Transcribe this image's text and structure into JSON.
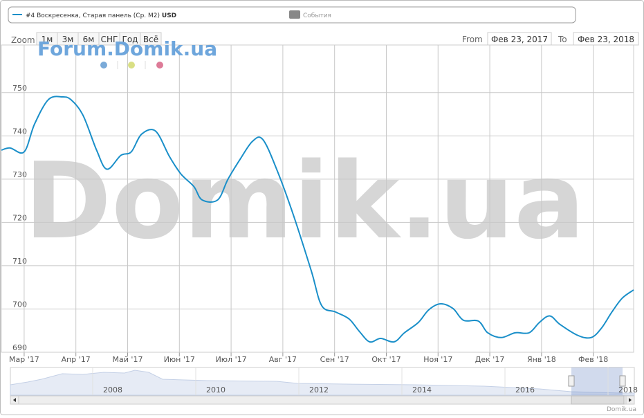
{
  "ui": {
    "zoom_label": "Zoom",
    "zoom_buttons": [
      "1м",
      "3м",
      "6м",
      "СНГ",
      "Год",
      "Всё"
    ],
    "from_label": "From",
    "from_date": "Фев 23, 2017",
    "to_label": "To",
    "to_date": "Фев 23, 2018",
    "events_label": "События",
    "watermark_small": "Forum.Domik.ua",
    "watermark_big": "Domik.ua",
    "credit": "Domik.ua",
    "navigator_years": [
      "2008",
      "2010",
      "2012",
      "2014",
      "2016",
      "2018"
    ]
  },
  "chart_data": {
    "type": "line",
    "unit": "USD",
    "xlim": [
      -0.44,
      11.78
    ],
    "ylim": [
      690,
      761
    ],
    "yticks": [
      690,
      700,
      710,
      720,
      730,
      740,
      750
    ],
    "xticks": [
      {
        "value": 0,
        "label": "Мар '17"
      },
      {
        "value": 1,
        "label": "Апр '17"
      },
      {
        "value": 2,
        "label": "Май '17"
      },
      {
        "value": 3,
        "label": "Июн '17"
      },
      {
        "value": 4,
        "label": "Июл '17"
      },
      {
        "value": 5,
        "label": "Авг '17"
      },
      {
        "value": 6,
        "label": "Сен '17"
      },
      {
        "value": 7,
        "label": "Окт '17"
      },
      {
        "value": 8,
        "label": "Ноя '17"
      },
      {
        "value": 9,
        "label": "Дек '17"
      },
      {
        "value": 10,
        "label": "Янв '18"
      },
      {
        "value": 11,
        "label": "Фев '18"
      }
    ],
    "grid": true,
    "series": [
      {
        "name": "#4 Воскресенка, Старая панель (Ср. М2)",
        "color": "#1a8fc9",
        "x": [
          -0.44,
          -0.27,
          0,
          0.2,
          0.47,
          0.74,
          0.91,
          1.14,
          1.4,
          1.6,
          1.87,
          2.07,
          2.27,
          2.54,
          2.81,
          3.03,
          3.28,
          3.44,
          3.74,
          3.94,
          4.18,
          4.41,
          4.61,
          4.88,
          5.21,
          5.55,
          5.75,
          6.02,
          6.28,
          6.48,
          6.68,
          6.89,
          7.15,
          7.35,
          7.62,
          7.82,
          8.05,
          8.29,
          8.49,
          8.78,
          8.96,
          9.22,
          9.49,
          9.76,
          9.96,
          10.16,
          10.36,
          10.7,
          10.96,
          11.16,
          11.36,
          11.56,
          11.78
        ],
        "values": [
          736.7,
          737.2,
          736.3,
          742.7,
          748.4,
          749,
          748.3,
          744.7,
          736.7,
          732.3,
          735.5,
          736.3,
          740.4,
          741.1,
          735.2,
          731.2,
          728.3,
          725.2,
          725.2,
          730,
          734.7,
          738.7,
          739.2,
          732.3,
          721.5,
          708.8,
          700.8,
          699.3,
          697.7,
          694.8,
          692.4,
          693.2,
          692.4,
          694.5,
          696.9,
          699.8,
          701.2,
          700.1,
          697.4,
          697.2,
          694.5,
          693.4,
          694.5,
          694.5,
          696.9,
          698.4,
          696.4,
          693.9,
          693.4,
          695.6,
          699.3,
          702.5,
          704.4
        ]
      }
    ]
  }
}
